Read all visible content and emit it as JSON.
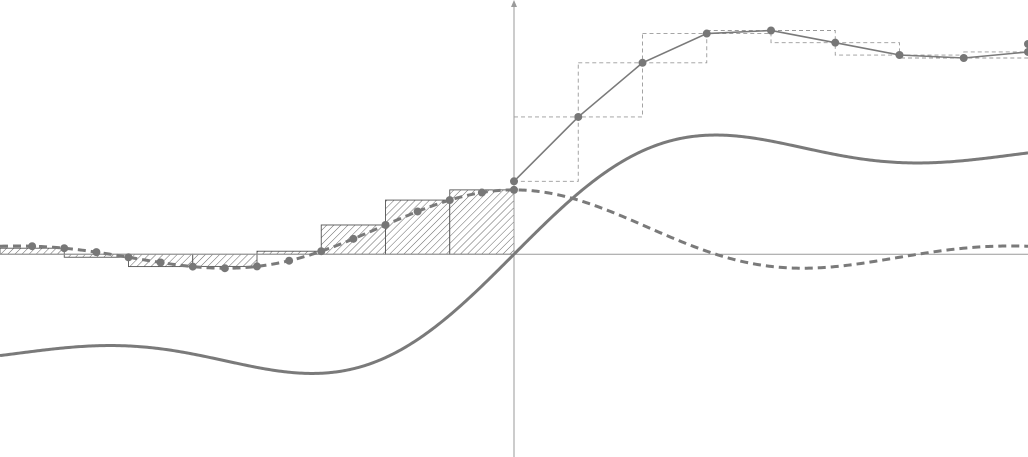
{
  "diagram": {
    "kind": "sinc-and-sine-integral-with-riemann-sums",
    "x_range": [
      -8.0,
      8.0
    ],
    "y_range": [
      -3.15,
      3.95
    ],
    "step": 1.0,
    "colors": {
      "curve": "#7a7a7a",
      "axis": "#9a9a9a",
      "hatch_fill": "#ffffff",
      "hatch_stroke": "#555555",
      "dashed_box": "#9a9a9a",
      "marker": "#777777"
    },
    "functions": [
      {
        "role": "sine-integral",
        "style": "solid"
      },
      {
        "role": "sinc",
        "style": "dashed"
      },
      {
        "role": "cumulative-riemann-sum",
        "style": "solid-polyline-with-markers"
      }
    ],
    "rectangles": {
      "left_of_axis": "hatched",
      "right_of_axis": "dashed-outline"
    }
  }
}
